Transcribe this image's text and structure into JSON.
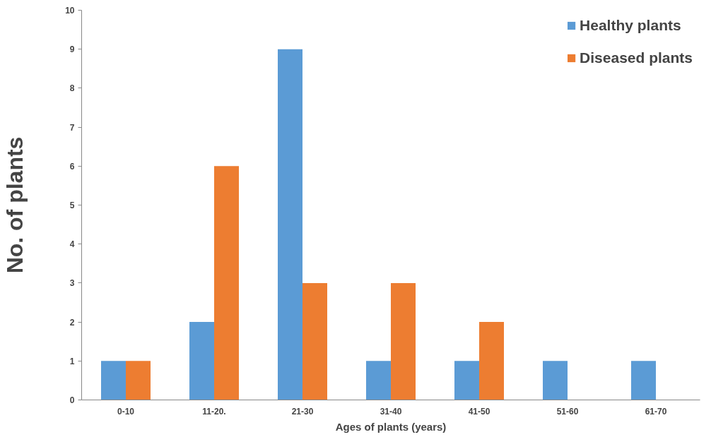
{
  "chart_data": {
    "type": "bar",
    "xlabel": "Ages of plants (years)",
    "ylabel": "No. of plants",
    "categories": [
      "0-10",
      "11-20.",
      "21-30",
      "31-40",
      "41-50",
      "51-60",
      "61-70"
    ],
    "series": [
      {
        "name": "Healthy plants",
        "color": "#5b9bd5",
        "values": [
          1,
          2,
          9,
          1,
          1,
          1,
          1
        ]
      },
      {
        "name": "Diseased plants",
        "color": "#ed7d31",
        "values": [
          1,
          6,
          3,
          3,
          2,
          0,
          0
        ]
      }
    ],
    "ylim": [
      0,
      10
    ],
    "yticks": [
      0,
      1,
      2,
      3,
      4,
      5,
      6,
      7,
      8,
      9,
      10
    ],
    "grid": false,
    "legend": "top right"
  }
}
